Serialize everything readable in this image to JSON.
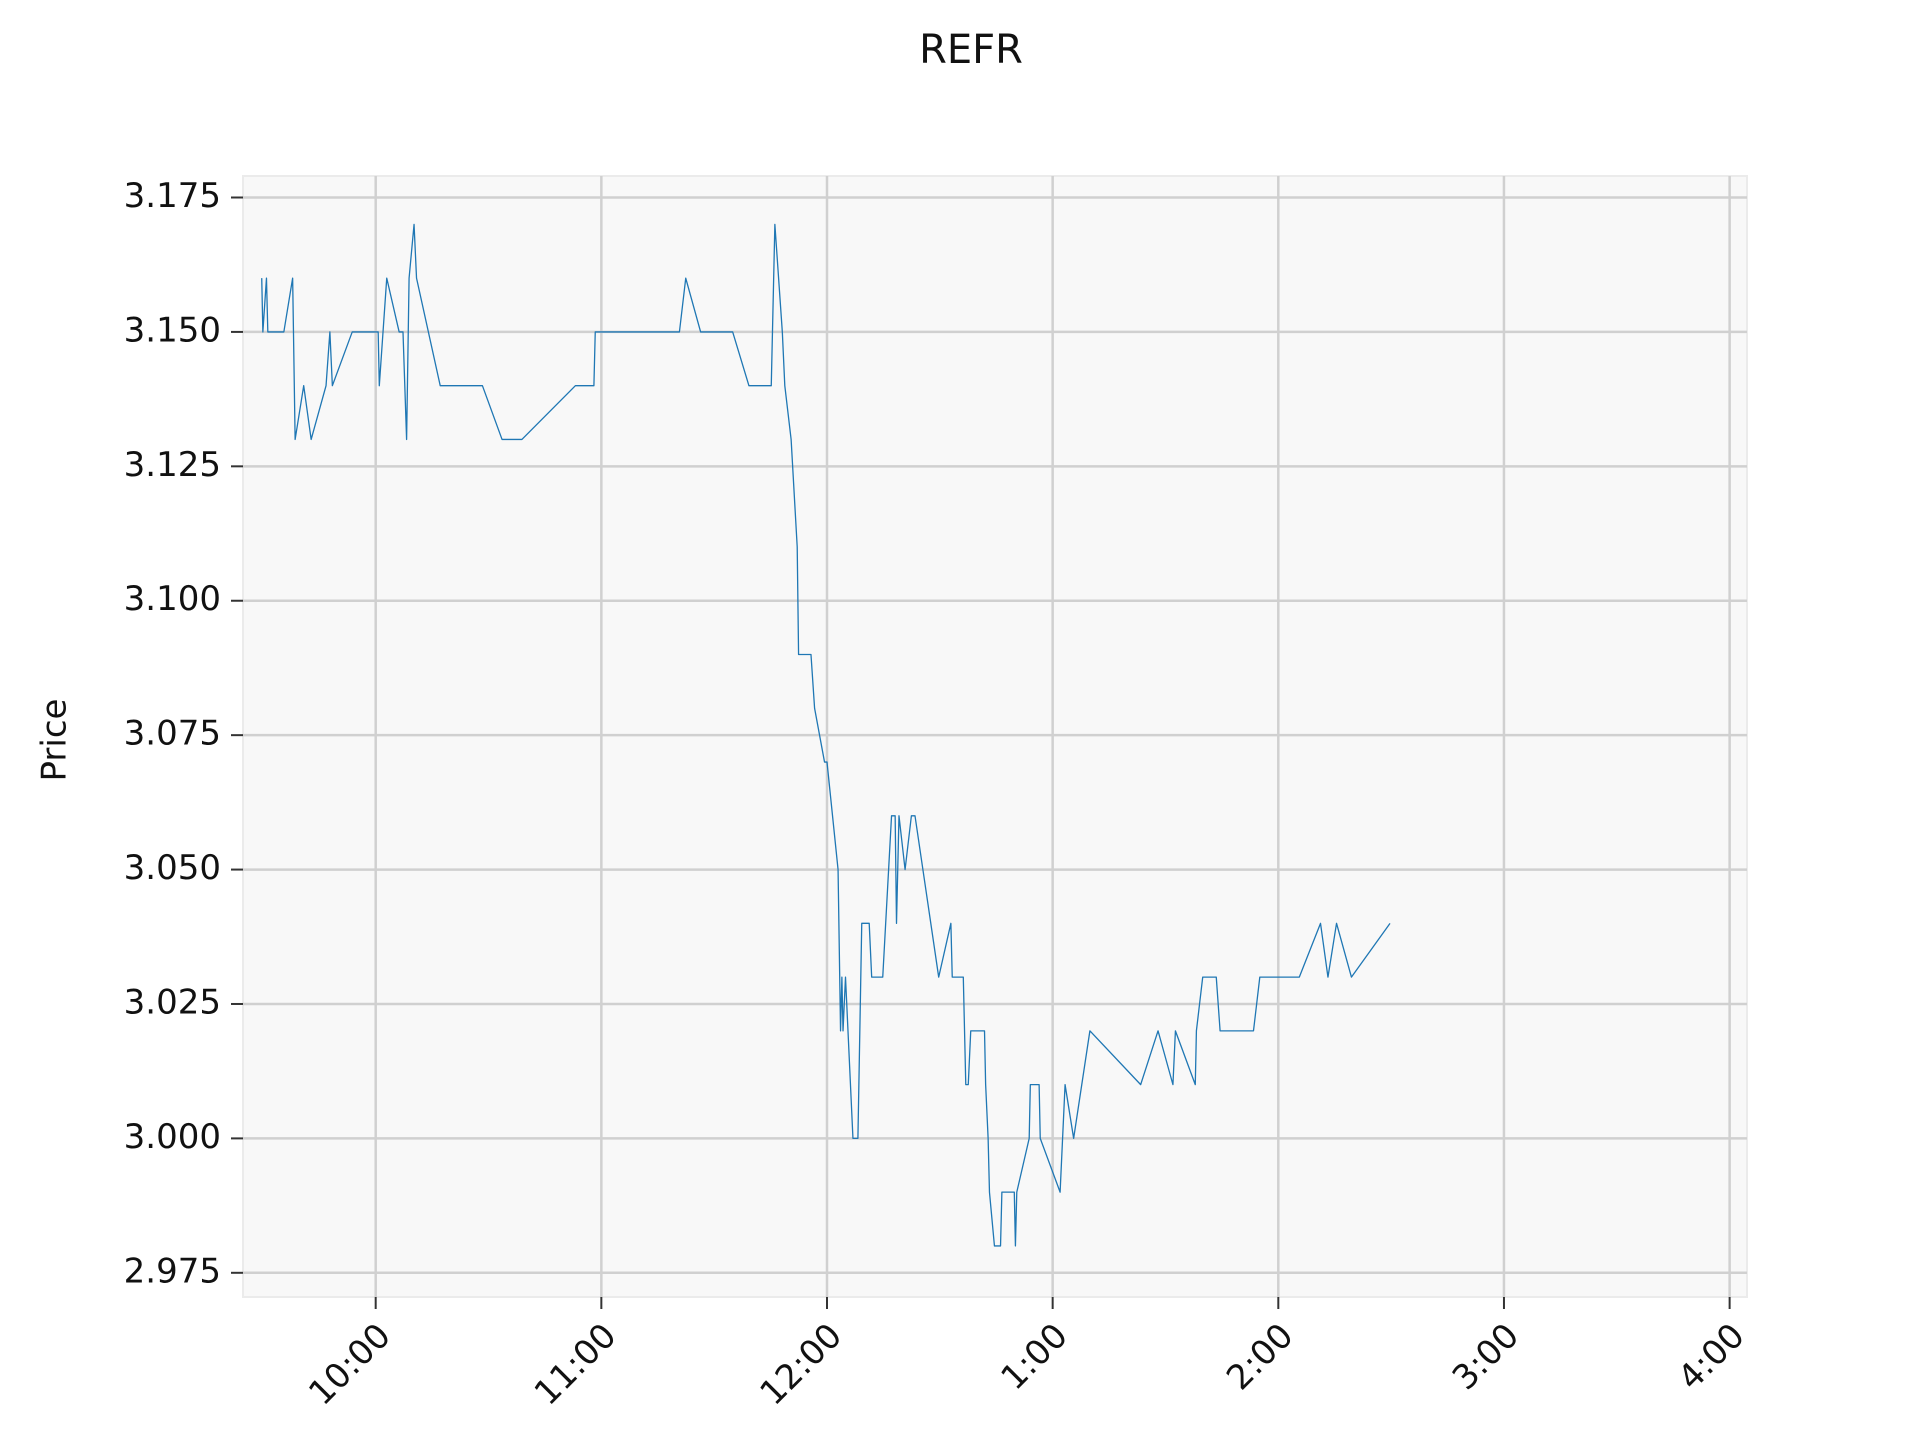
{
  "chart_data": {
    "type": "line",
    "title": "REFR",
    "y_label": "Price",
    "color": "#1f77b4",
    "grid": true,
    "xlim": [
      9.412,
      16.077
    ],
    "ylim": [
      2.9705,
      3.179
    ],
    "xticks": [
      {
        "value": 10,
        "label": "10:00"
      },
      {
        "value": 11,
        "label": "11:00"
      },
      {
        "value": 12,
        "label": "12:00"
      },
      {
        "value": 13,
        "label": "1:00"
      },
      {
        "value": 14,
        "label": "2:00"
      },
      {
        "value": 15,
        "label": "3:00"
      },
      {
        "value": 16,
        "label": "4:00"
      }
    ],
    "yticks": [
      {
        "value": 2.975,
        "label": "2.975"
      },
      {
        "value": 3,
        "label": "3.000"
      },
      {
        "value": 3.025,
        "label": "3.025"
      },
      {
        "value": 3.05,
        "label": "3.050"
      },
      {
        "value": 3.075,
        "label": "3.075"
      },
      {
        "value": 3.1,
        "label": "3.100"
      },
      {
        "value": 3.125,
        "label": "3.125"
      },
      {
        "value": 3.15,
        "label": "3.150"
      },
      {
        "value": 3.175,
        "label": "3.175"
      }
    ],
    "x": [
      9.495,
      9.5,
      9.516,
      9.522,
      9.593,
      9.632,
      9.643,
      9.681,
      9.714,
      9.78,
      9.797,
      9.808,
      9.896,
      10.011,
      10.016,
      10.049,
      10.104,
      10.121,
      10.137,
      10.148,
      10.17,
      10.181,
      10.286,
      10.473,
      10.56,
      10.648,
      10.885,
      10.967,
      10.973,
      11.346,
      11.374,
      11.44,
      11.582,
      11.654,
      11.753,
      11.769,
      11.802,
      11.813,
      11.841,
      11.868,
      11.874,
      11.929,
      11.945,
      11.989,
      12.0,
      12.049,
      12.06,
      12.066,
      12.071,
      12.082,
      12.115,
      12.137,
      12.154,
      12.187,
      12.198,
      12.247,
      12.286,
      12.302,
      12.308,
      12.319,
      12.346,
      12.374,
      12.39,
      12.495,
      12.549,
      12.555,
      12.604,
      12.615,
      12.626,
      12.637,
      12.698,
      12.703,
      12.714,
      12.72,
      12.742,
      12.769,
      12.775,
      12.83,
      12.835,
      12.841,
      12.896,
      12.901,
      12.94,
      12.945,
      13.033,
      13.055,
      13.093,
      13.165,
      13.39,
      13.467,
      13.533,
      13.544,
      13.632,
      13.637,
      13.665,
      13.725,
      13.742,
      13.89,
      13.918,
      14.093,
      14.187,
      14.22,
      14.258,
      14.324,
      14.495
    ],
    "values": [
      3.16,
      3.15,
      3.16,
      3.15,
      3.15,
      3.16,
      3.13,
      3.14,
      3.13,
      3.14,
      3.15,
      3.14,
      3.15,
      3.15,
      3.14,
      3.16,
      3.15,
      3.15,
      3.13,
      3.16,
      3.17,
      3.16,
      3.14,
      3.14,
      3.13,
      3.13,
      3.14,
      3.14,
      3.15,
      3.15,
      3.16,
      3.15,
      3.15,
      3.14,
      3.14,
      3.17,
      3.15,
      3.14,
      3.13,
      3.11,
      3.09,
      3.09,
      3.08,
      3.07,
      3.07,
      3.05,
      3.02,
      3.03,
      3.02,
      3.03,
      3.0,
      3.0,
      3.04,
      3.04,
      3.03,
      3.03,
      3.06,
      3.06,
      3.04,
      3.06,
      3.05,
      3.06,
      3.06,
      3.03,
      3.04,
      3.03,
      3.03,
      3.01,
      3.01,
      3.02,
      3.02,
      3.01,
      3.0,
      2.99,
      2.98,
      2.98,
      2.99,
      2.99,
      2.98,
      2.99,
      3.0,
      3.01,
      3.01,
      3.0,
      2.99,
      3.01,
      3.0,
      3.02,
      3.01,
      3.02,
      3.01,
      3.02,
      3.01,
      3.02,
      3.03,
      3.03,
      3.02,
      3.02,
      3.03,
      3.03,
      3.04,
      3.03,
      3.04,
      3.03,
      3.04
    ]
  }
}
